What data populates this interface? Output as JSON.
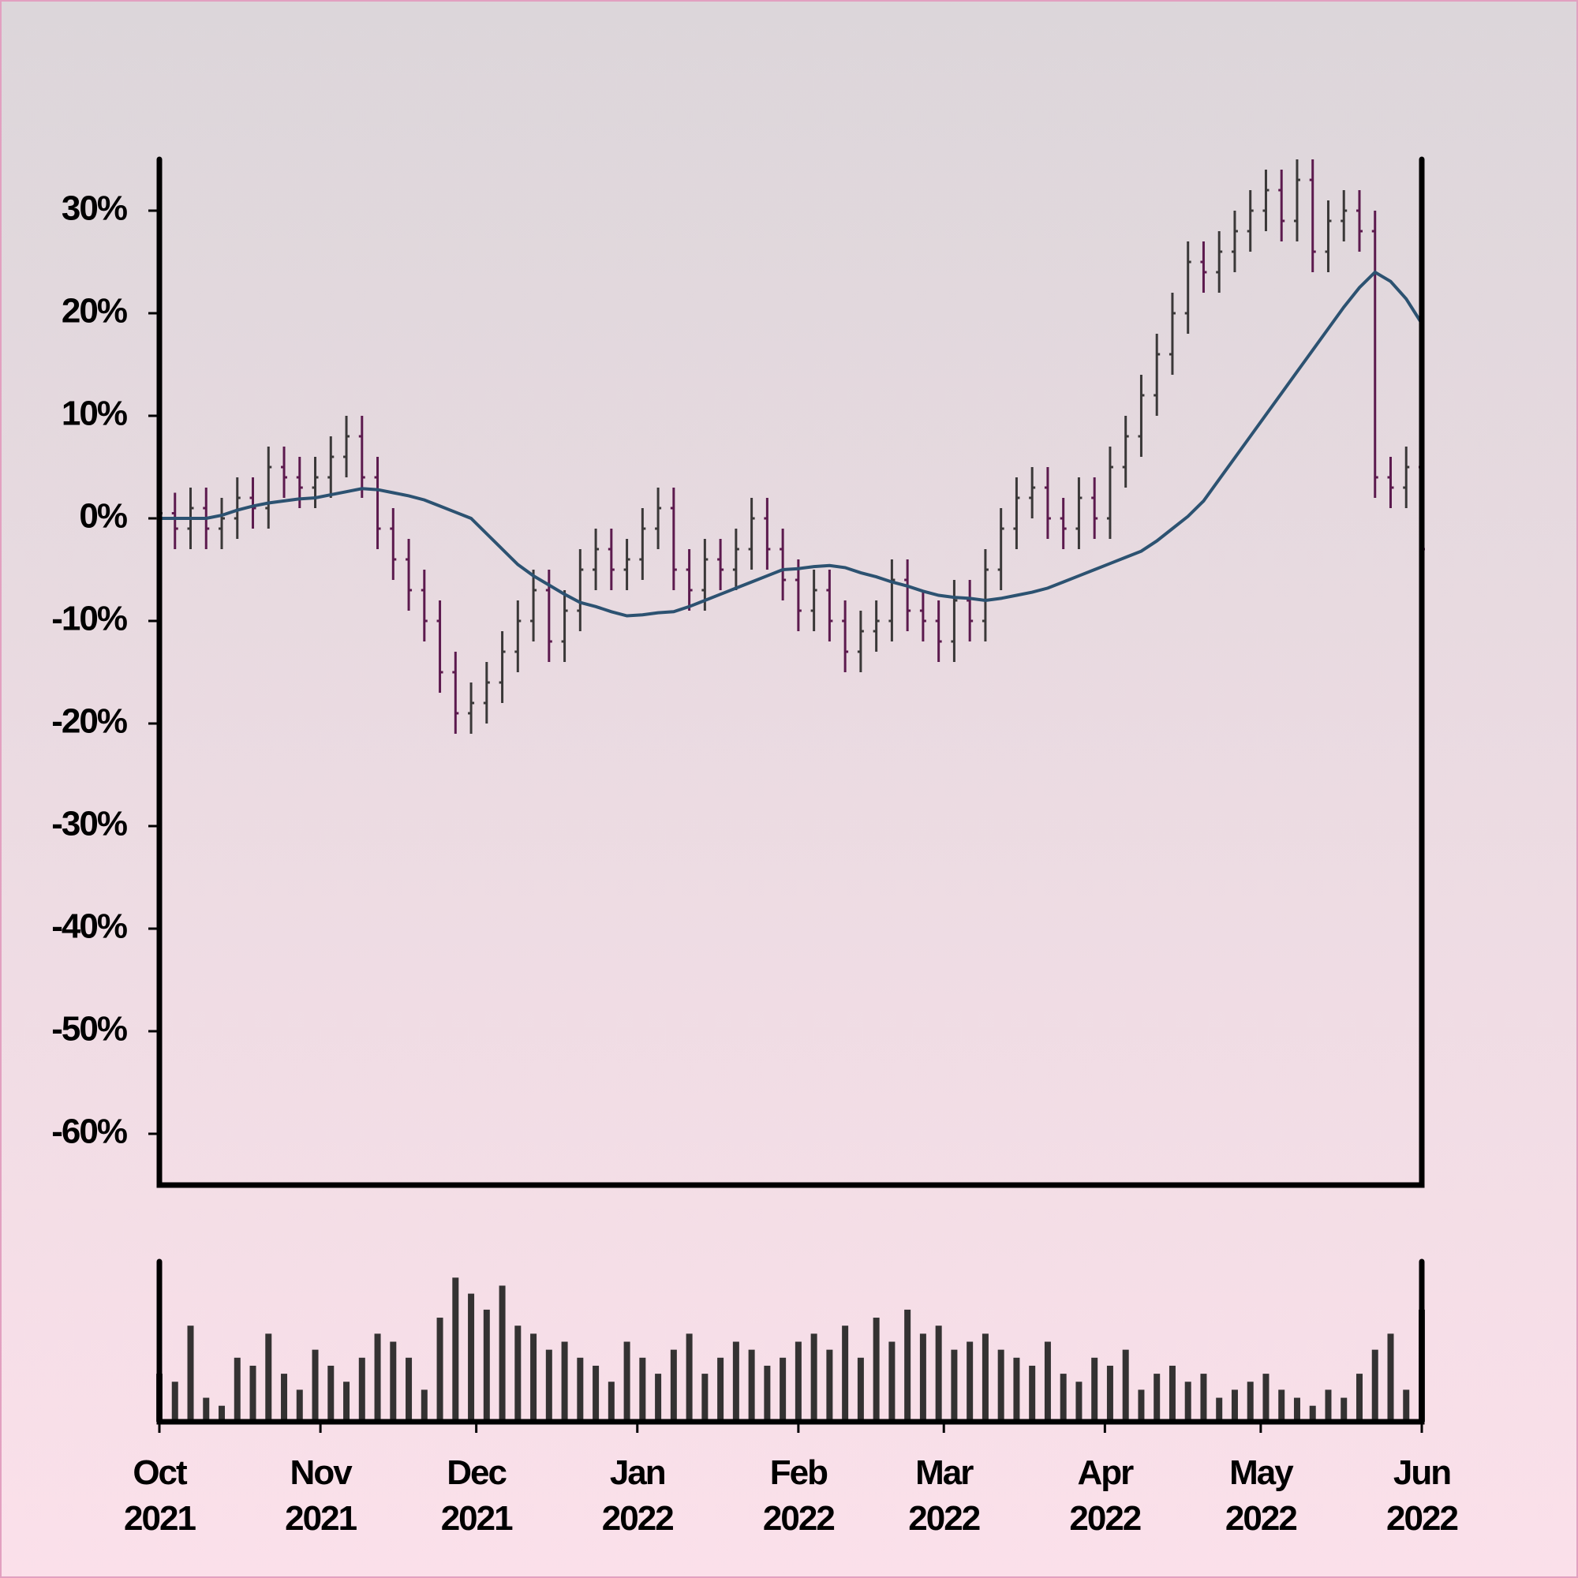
{
  "chart_data": {
    "type": "ohlc",
    "x": [
      0,
      3,
      6,
      9,
      12,
      15,
      18,
      21,
      24,
      27,
      30,
      33,
      36,
      39,
      42,
      45,
      48,
      51,
      54,
      57,
      60,
      63,
      66,
      69,
      72,
      75,
      78,
      81,
      84,
      87,
      90,
      93,
      96,
      99,
      102,
      105,
      108,
      111,
      114,
      117,
      120,
      123,
      126,
      129,
      132,
      135,
      138,
      141,
      144,
      147,
      150,
      153,
      156,
      159,
      162,
      165,
      168,
      171,
      174,
      177,
      180,
      183,
      186,
      189,
      192,
      195,
      198,
      201,
      204,
      207,
      210,
      213,
      216,
      219,
      222,
      225,
      228,
      231,
      234,
      237,
      240,
      243
    ],
    "open": [
      0,
      0.5,
      -1,
      1,
      -1,
      0,
      2,
      1,
      5,
      4,
      3,
      4,
      6,
      8,
      4,
      -1,
      -4,
      -7,
      -10,
      -15,
      -19,
      -18,
      -16,
      -13,
      -10,
      -7,
      -12,
      -9,
      -5,
      -3,
      -5,
      -4,
      -1,
      1,
      -5,
      -7,
      -4,
      -5,
      -3,
      0,
      -3,
      -6,
      -9,
      -7,
      -10,
      -13,
      -11,
      -10,
      -6,
      -9,
      -10,
      -12,
      -8,
      -10,
      -5,
      -1,
      2,
      3,
      0,
      -1,
      2,
      0,
      5,
      8,
      12,
      16,
      20,
      25,
      24,
      26,
      28,
      30,
      32,
      29,
      33,
      26,
      29,
      30,
      28,
      4,
      3,
      5
    ],
    "high": [
      2.5,
      2.5,
      3,
      3,
      2,
      4,
      4,
      7,
      7,
      6,
      6,
      8,
      10,
      10,
      6,
      1,
      -2,
      -5,
      -8,
      -13,
      -16,
      -14,
      -11,
      -8,
      -5,
      -5,
      -7,
      -3,
      -1,
      -1,
      -2,
      1,
      3,
      3,
      -3,
      -2,
      -2,
      -1,
      2,
      2,
      -1,
      -4,
      -5,
      -5,
      -8,
      -9,
      -8,
      -4,
      -4,
      -7,
      -8,
      -6,
      -6,
      -3,
      1,
      4,
      5,
      5,
      2,
      4,
      4,
      7,
      10,
      14,
      18,
      22,
      27,
      27,
      28,
      30,
      32,
      34,
      34,
      35,
      35,
      31,
      32,
      32,
      30,
      6,
      7,
      7
    ],
    "low": [
      -2,
      -3,
      -3,
      -3,
      -3,
      -2,
      -1,
      -1,
      2,
      1,
      1,
      2,
      4,
      2,
      -3,
      -6,
      -9,
      -12,
      -17,
      -21,
      -21,
      -20,
      -18,
      -15,
      -12,
      -14,
      -14,
      -11,
      -7,
      -7,
      -7,
      -6,
      -3,
      -7,
      -9,
      -9,
      -7,
      -7,
      -5,
      -5,
      -8,
      -11,
      -11,
      -12,
      -15,
      -15,
      -13,
      -12,
      -11,
      -12,
      -14,
      -14,
      -12,
      -12,
      -7,
      -3,
      0,
      -2,
      -3,
      -3,
      -2,
      -2,
      3,
      6,
      10,
      14,
      18,
      22,
      22,
      24,
      26,
      28,
      27,
      27,
      24,
      24,
      27,
      26,
      2,
      1,
      1,
      -5
    ],
    "close": [
      0.5,
      -1,
      1,
      -1,
      0,
      2,
      1,
      5,
      4,
      3,
      4,
      6,
      8,
      4,
      -1,
      -4,
      -7,
      -10,
      -15,
      -19,
      -18,
      -16,
      -13,
      -10,
      -7,
      -12,
      -9,
      -5,
      -3,
      -5,
      -4,
      -1,
      1,
      -5,
      -7,
      -4,
      -5,
      -3,
      0,
      -3,
      -6,
      -9,
      -7,
      -10,
      -13,
      -11,
      -10,
      -6,
      -9,
      -10,
      -12,
      -8,
      -10,
      -5,
      -1,
      2,
      3,
      0,
      -1,
      2,
      0,
      5,
      8,
      12,
      16,
      20,
      25,
      24,
      26,
      28,
      30,
      32,
      29,
      33,
      26,
      29,
      30,
      28,
      4,
      3,
      5,
      -3
    ],
    "moving_average": [
      0,
      0,
      0,
      0,
      0.3,
      0.8,
      1.2,
      1.5,
      1.7,
      1.9,
      2,
      2.3,
      2.6,
      2.9,
      2.8,
      2.5,
      2.2,
      1.8,
      1.2,
      0.6,
      0,
      -1.5,
      -3,
      -4.5,
      -5.6,
      -6.5,
      -7.4,
      -8.2,
      -8.6,
      -9.1,
      -9.5,
      -9.4,
      -9.2,
      -9.1,
      -8.6,
      -8,
      -7.4,
      -6.8,
      -6.2,
      -5.6,
      -5,
      -4.9,
      -4.7,
      -4.6,
      -4.8,
      -5.3,
      -5.7,
      -6.2,
      -6.6,
      -7.1,
      -7.5,
      -7.7,
      -7.8,
      -8,
      -7.8,
      -7.5,
      -7.2,
      -6.8,
      -6.2,
      -5.6,
      -5,
      -4.4,
      -3.8,
      -3.2,
      -2.2,
      -1,
      0.2,
      1.7,
      3.8,
      5.9,
      8,
      10.1,
      12.2,
      14.3,
      16.4,
      18.5,
      20.6,
      22.5,
      24,
      23.1,
      21.4,
      19
    ],
    "volume": [
      30,
      25,
      60,
      15,
      10,
      40,
      35,
      55,
      30,
      20,
      45,
      35,
      25,
      40,
      55,
      50,
      40,
      20,
      65,
      90,
      80,
      70,
      85,
      60,
      55,
      45,
      50,
      40,
      35,
      25,
      50,
      40,
      30,
      45,
      55,
      30,
      40,
      50,
      45,
      35,
      40,
      50,
      55,
      45,
      60,
      40,
      65,
      50,
      70,
      55,
      60,
      45,
      50,
      55,
      45,
      40,
      35,
      50,
      30,
      25,
      40,
      35,
      45,
      20,
      30,
      35,
      25,
      30,
      15,
      20,
      25,
      30,
      20,
      15,
      10,
      20,
      15,
      30,
      45,
      55,
      20,
      70
    ],
    "up_color": "#3a3838",
    "down_color": "#5c1a4e",
    "ma_color": "#2c5271",
    "volume_color": "#343232",
    "xlim": [
      0,
      243
    ],
    "xticks": [
      {
        "value": 0,
        "label": "Oct 2021"
      },
      {
        "value": 31,
        "label": "Nov 2021"
      },
      {
        "value": 61,
        "label": "Dec 2021"
      },
      {
        "value": 92,
        "label": "Jan 2022"
      },
      {
        "value": 123,
        "label": "Feb 2022"
      },
      {
        "value": 151,
        "label": "Mar 2022"
      },
      {
        "value": 182,
        "label": "Apr 2022"
      },
      {
        "value": 212,
        "label": "May 2022"
      },
      {
        "value": 243,
        "label": "Jun 2022"
      }
    ],
    "ylim": [
      -65,
      35
    ],
    "yticks": [
      {
        "value": -60,
        "label": "-60%"
      },
      {
        "value": -50,
        "label": "-50%"
      },
      {
        "value": -40,
        "label": "-40%"
      },
      {
        "value": -30,
        "label": "-30%"
      },
      {
        "value": -20,
        "label": "-20%"
      },
      {
        "value": -10,
        "label": "-10%"
      },
      {
        "value": 0,
        "label": "0%"
      },
      {
        "value": 10,
        "label": "10%"
      },
      {
        "value": 20,
        "label": "20%"
      },
      {
        "value": 30,
        "label": "30%"
      }
    ],
    "volume_ylim": [
      0,
      100
    ]
  }
}
